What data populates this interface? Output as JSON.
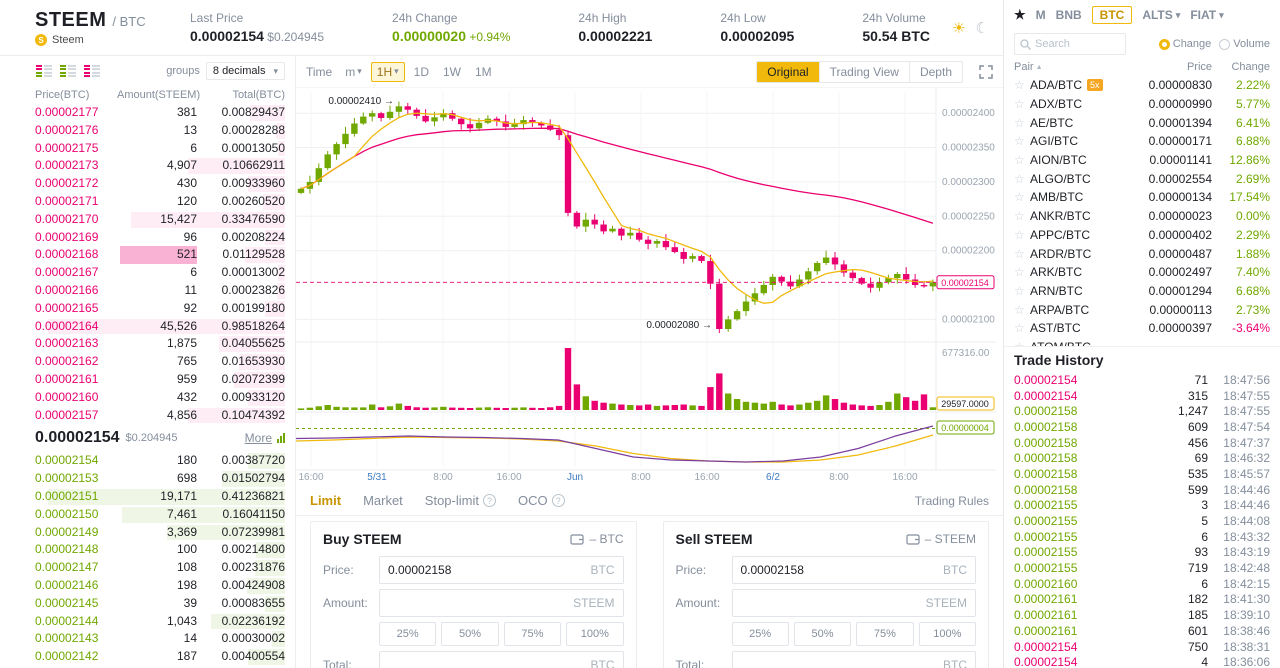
{
  "header": {
    "symbol": "STEEM",
    "quote": "/ BTC",
    "coin_name": "Steem",
    "stats": [
      {
        "label": "Last Price",
        "value": "0.00002154",
        "sub": "$0.204945",
        "type": "last"
      },
      {
        "label": "24h Change",
        "value": "0.00000020",
        "sub": "+0.94%",
        "type": "up"
      },
      {
        "label": "24h High",
        "value": "0.00002221"
      },
      {
        "label": "24h Low",
        "value": "0.00002095"
      },
      {
        "label": "24h Volume",
        "value": "50.54 BTC"
      }
    ]
  },
  "orderbook": {
    "groups_label": "groups",
    "decimals": "8 decimals",
    "columns": [
      "Price(BTC)",
      "Amount(STEEM)",
      "Total(BTC)"
    ],
    "asks": [
      [
        "0.00002177",
        "381",
        "0.00829437"
      ],
      [
        "0.00002176",
        "13",
        "0.00028288"
      ],
      [
        "0.00002175",
        "6",
        "0.00013050"
      ],
      [
        "0.00002173",
        "4,907",
        "0.10662911"
      ],
      [
        "0.00002172",
        "430",
        "0.00933960"
      ],
      [
        "0.00002171",
        "120",
        "0.00260520"
      ],
      [
        "0.00002170",
        "15,427",
        "0.33476590"
      ],
      [
        "0.00002169",
        "96",
        "0.00208224"
      ],
      [
        "0.00002168",
        "521",
        "0.01129528"
      ],
      [
        "0.00002167",
        "6",
        "0.00013002"
      ],
      [
        "0.00002166",
        "11",
        "0.00023826"
      ],
      [
        "0.00002165",
        "92",
        "0.00199180"
      ],
      [
        "0.00002164",
        "45,526",
        "0.98518264"
      ],
      [
        "0.00002163",
        "1,875",
        "0.04055625"
      ],
      [
        "0.00002162",
        "765",
        "0.01653930"
      ],
      [
        "0.00002161",
        "959",
        "0.02072399"
      ],
      [
        "0.00002160",
        "432",
        "0.00933120"
      ],
      [
        "0.00002157",
        "4,856",
        "0.10474392"
      ]
    ],
    "flash_ask_index": 8,
    "last_price": "0.00002154",
    "last_price_fiat": "$0.204945",
    "more_label": "More",
    "bids": [
      [
        "0.00002154",
        "180",
        "0.00387720"
      ],
      [
        "0.00002153",
        "698",
        "0.01502794"
      ],
      [
        "0.00002151",
        "19,171",
        "0.41236821"
      ],
      [
        "0.00002150",
        "7,461",
        "0.16041150"
      ],
      [
        "0.00002149",
        "3,369",
        "0.07239981"
      ],
      [
        "0.00002148",
        "100",
        "0.00214800"
      ],
      [
        "0.00002147",
        "108",
        "0.00231876"
      ],
      [
        "0.00002146",
        "198",
        "0.00424908"
      ],
      [
        "0.00002145",
        "39",
        "0.00083655"
      ],
      [
        "0.00002144",
        "1,043",
        "0.02236192"
      ],
      [
        "0.00002143",
        "14",
        "0.00030002"
      ],
      [
        "0.00002142",
        "187",
        "0.00400554"
      ]
    ]
  },
  "chart": {
    "toolbar": {
      "time_label": "Time",
      "intervals": [
        "m",
        "1H",
        "1D",
        "1W",
        "1M"
      ],
      "selected_interval": "1H",
      "views": [
        "Original",
        "Trading View",
        "Depth"
      ],
      "selected_view": "Original"
    },
    "y_axis": [
      "0.00002400",
      "0.00002350",
      "0.00002300",
      "0.00002250",
      "0.00002200",
      "0.00002100"
    ],
    "x_axis": [
      "16:00",
      "5/31",
      "8:00",
      "16:00",
      "Jun",
      "8:00",
      "16:00",
      "6/2",
      "8:00",
      "16:00"
    ],
    "x_axis_date_indices": [
      1,
      4,
      7
    ],
    "annotations": {
      "high": "0.00002410",
      "low": "0.00002080"
    },
    "current_price_tag": "0.00002154",
    "volume_axis_label": "677316.00",
    "volume_tag": "29597.0000",
    "indicator_tag": "0.00000004",
    "candles_close": [
      2290,
      2300,
      2320,
      2340,
      2355,
      2370,
      2385,
      2395,
      2400,
      2393,
      2402,
      2410,
      2405,
      2396,
      2388,
      2394,
      2400,
      2392,
      2384,
      2378,
      2386,
      2392,
      2388,
      2380,
      2384,
      2390,
      2386,
      2382,
      2376,
      2368,
      2255,
      2235,
      2245,
      2238,
      2228,
      2232,
      2222,
      2226,
      2216,
      2210,
      2214,
      2205,
      2198,
      2188,
      2192,
      2185,
      2152,
      2086,
      2100,
      2112,
      2126,
      2138,
      2150,
      2162,
      2155,
      2148,
      2158,
      2170,
      2182,
      2190,
      2180,
      2168,
      2160,
      2152,
      2146,
      2154,
      2160,
      2166,
      2158,
      2150,
      2148,
      2154
    ],
    "volumes": [
      18000,
      25000,
      40000,
      55000,
      35000,
      30000,
      28000,
      28000,
      60000,
      30000,
      40000,
      70000,
      45000,
      30000,
      25000,
      28000,
      35000,
      26000,
      24000,
      22000,
      26000,
      30000,
      24000,
      22000,
      25000,
      28000,
      24000,
      22000,
      30000,
      45000,
      677316,
      280000,
      150000,
      100000,
      80000,
      70000,
      60000,
      55000,
      50000,
      60000,
      45000,
      50000,
      55000,
      60000,
      50000,
      45000,
      250000,
      400000,
      180000,
      120000,
      90000,
      80000,
      70000,
      90000,
      60000,
      50000,
      60000,
      80000,
      100000,
      160000,
      120000,
      80000,
      60000,
      50000,
      45000,
      55000,
      90000,
      180000,
      140000,
      100000,
      170000,
      29597
    ],
    "indicator": {
      "purple": [
        0.55,
        0.56,
        0.58,
        0.6,
        0.58,
        0.57,
        0.55,
        0.52,
        0.35,
        0.18,
        0.12,
        0.1,
        0.08,
        0.1,
        0.18,
        0.35,
        0.6,
        0.8
      ],
      "yellow": [
        0.5,
        0.52,
        0.55,
        0.58,
        0.57,
        0.56,
        0.54,
        0.5,
        0.4,
        0.25,
        0.15,
        0.1,
        0.08,
        0.08,
        0.12,
        0.22,
        0.4,
        0.62
      ]
    }
  },
  "forms": {
    "tabs": [
      {
        "label": "Limit",
        "selected": true
      },
      {
        "label": "Market"
      },
      {
        "label": "Stop-limit",
        "help": true
      },
      {
        "label": "OCO",
        "help": true
      }
    ],
    "trading_rules": "Trading Rules",
    "price_label": "Price:",
    "amount_label": "Amount:",
    "total_label": "Total:",
    "percents": [
      "25%",
      "50%",
      "75%",
      "100%"
    ],
    "buy": {
      "title": "Buy STEEM",
      "balance": "– BTC",
      "price": "0.00002158",
      "price_unit": "BTC",
      "amount_unit": "STEEM",
      "total_unit": "BTC"
    },
    "sell": {
      "title": "Sell STEEM",
      "balance": "– STEEM",
      "price": "0.00002158",
      "price_unit": "BTC",
      "amount_unit": "STEEM",
      "total_unit": "BTC"
    }
  },
  "market": {
    "tabs": [
      {
        "icon": "star",
        "label": "★"
      },
      {
        "label": "M"
      },
      {
        "label": "BNB"
      },
      {
        "label": "BTC",
        "selected": true
      },
      {
        "label": "ALTS",
        "caret": true
      },
      {
        "label": "FIAT",
        "caret": true
      }
    ],
    "search_placeholder": "Search",
    "radios": [
      {
        "label": "Change",
        "selected": true
      },
      {
        "label": "Volume"
      }
    ],
    "columns": [
      "Pair",
      "Price",
      "Change"
    ],
    "rows": [
      {
        "pair": "ADA/BTC",
        "badge": "5x",
        "price": "0.00000830",
        "change": "2.22%"
      },
      {
        "pair": "ADX/BTC",
        "price": "0.00000990",
        "change": "5.77%"
      },
      {
        "pair": "AE/BTC",
        "price": "0.00001394",
        "change": "6.41%"
      },
      {
        "pair": "AGI/BTC",
        "price": "0.00000171",
        "change": "6.88%"
      },
      {
        "pair": "AION/BTC",
        "price": "0.00001141",
        "change": "12.86%"
      },
      {
        "pair": "ALGO/BTC",
        "price": "0.00002554",
        "change": "2.69%"
      },
      {
        "pair": "AMB/BTC",
        "price": "0.00000134",
        "change": "17.54%"
      },
      {
        "pair": "ANKR/BTC",
        "price": "0.00000023",
        "change": "0.00%"
      },
      {
        "pair": "APPC/BTC",
        "price": "0.00000402",
        "change": "2.29%"
      },
      {
        "pair": "ARDR/BTC",
        "price": "0.00000487",
        "change": "1.88%"
      },
      {
        "pair": "ARK/BTC",
        "price": "0.00002497",
        "change": "7.40%"
      },
      {
        "pair": "ARN/BTC",
        "price": "0.00001294",
        "change": "6.68%"
      },
      {
        "pair": "ARPA/BTC",
        "price": "0.00000113",
        "change": "2.73%"
      },
      {
        "pair": "AST/BTC",
        "price": "0.00000397",
        "change": "-3.64%"
      },
      {
        "pair": "ATOM/BTC",
        "price": "",
        "change": ""
      }
    ]
  },
  "trade_history": {
    "title": "Trade History",
    "rows": [
      {
        "price": "0.00002154",
        "amount": "71",
        "time": "18:47:56",
        "side": "sell"
      },
      {
        "price": "0.00002154",
        "amount": "315",
        "time": "18:47:55",
        "side": "sell"
      },
      {
        "price": "0.00002158",
        "amount": "1,247",
        "time": "18:47:55",
        "side": "buy"
      },
      {
        "price": "0.00002158",
        "amount": "609",
        "time": "18:47:54",
        "side": "buy"
      },
      {
        "price": "0.00002158",
        "amount": "456",
        "time": "18:47:37",
        "side": "buy"
      },
      {
        "price": "0.00002158",
        "amount": "69",
        "time": "18:46:32",
        "side": "buy"
      },
      {
        "price": "0.00002158",
        "amount": "535",
        "time": "18:45:57",
        "side": "buy"
      },
      {
        "price": "0.00002158",
        "amount": "599",
        "time": "18:44:46",
        "side": "buy"
      },
      {
        "price": "0.00002155",
        "amount": "3",
        "time": "18:44:46",
        "side": "buy"
      },
      {
        "price": "0.00002155",
        "amount": "5",
        "time": "18:44:08",
        "side": "buy"
      },
      {
        "price": "0.00002155",
        "amount": "6",
        "time": "18:43:32",
        "side": "buy"
      },
      {
        "price": "0.00002155",
        "amount": "93",
        "time": "18:43:19",
        "side": "buy"
      },
      {
        "price": "0.00002155",
        "amount": "719",
        "time": "18:42:48",
        "side": "buy"
      },
      {
        "price": "0.00002160",
        "amount": "6",
        "time": "18:42:15",
        "side": "buy"
      },
      {
        "price": "0.00002161",
        "amount": "182",
        "time": "18:41:30",
        "side": "buy"
      },
      {
        "price": "0.00002161",
        "amount": "185",
        "time": "18:39:10",
        "side": "buy"
      },
      {
        "price": "0.00002161",
        "amount": "601",
        "time": "18:38:46",
        "side": "buy"
      },
      {
        "price": "0.00002154",
        "amount": "750",
        "time": "18:38:31",
        "side": "sell"
      },
      {
        "price": "0.00002154",
        "amount": "4",
        "time": "18:36:06",
        "side": "sell"
      }
    ]
  },
  "colors": {
    "accent": "#F0B90B",
    "buy": "#70A800",
    "sell": "#EA0070"
  }
}
